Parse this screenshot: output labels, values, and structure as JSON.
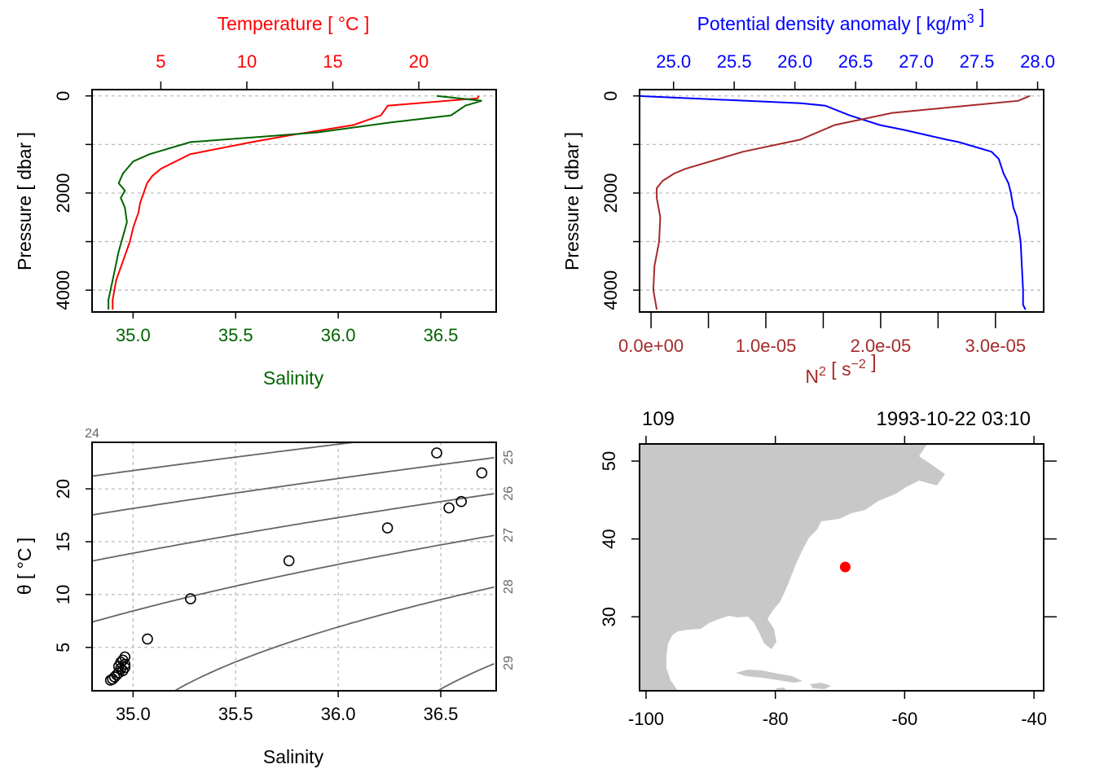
{
  "colors": {
    "temperature": "#ff0000",
    "salinity": "#006400",
    "density": "#0000ff",
    "n2": "#a52a2a",
    "land": "#c8c8c8",
    "station": "#ff0000",
    "isopycnal": "#666666",
    "grid": "#bdbdbd"
  },
  "chart_data": [
    {
      "id": "ts_profile",
      "type": "line",
      "x_bottom_label": "Salinity",
      "x_top_label": "Temperature [ °C ]",
      "y_label": "Pressure [ dbar ]",
      "x_bottom_range": [
        34.8,
        36.77
      ],
      "x_top_range": [
        1.0,
        24.5
      ],
      "y_range": [
        4450,
        -130
      ],
      "y_reversed": true,
      "grid": "dashed horizontal at y ticks",
      "x_bottom_ticks": [
        "35.0",
        "35.5",
        "36.0",
        "36.5"
      ],
      "x_top_ticks": [
        "5",
        "10",
        "15",
        "20"
      ],
      "y_ticks": [
        "0",
        "2000",
        "4000"
      ],
      "series": [
        {
          "name": "Temperature",
          "axis": "top",
          "color": "#ff0000",
          "points": [
            [
              23.5,
              0
            ],
            [
              23.4,
              50
            ],
            [
              18.2,
              200
            ],
            [
              17.8,
              400
            ],
            [
              16.2,
              600
            ],
            [
              12.7,
              800
            ],
            [
              10.3,
              950
            ],
            [
              6.7,
              1200
            ],
            [
              5.0,
              1500
            ],
            [
              4.5,
              1650
            ],
            [
              4.2,
              1800
            ],
            [
              4.0,
              2000
            ],
            [
              3.8,
              2200
            ],
            [
              3.7,
              2400
            ],
            [
              3.4,
              2700
            ],
            [
              3.2,
              3000
            ],
            [
              2.8,
              3400
            ],
            [
              2.4,
              3800
            ],
            [
              2.2,
              4200
            ],
            [
              2.2,
              4400
            ]
          ]
        },
        {
          "name": "Salinity",
          "axis": "bottom",
          "color": "#006400",
          "points": [
            [
              36.48,
              0
            ],
            [
              36.7,
              100
            ],
            [
              36.62,
              200
            ],
            [
              36.55,
              400
            ],
            [
              36.25,
              550
            ],
            [
              35.9,
              750
            ],
            [
              35.6,
              850
            ],
            [
              35.28,
              950
            ],
            [
              35.08,
              1200
            ],
            [
              35.0,
              1350
            ],
            [
              34.95,
              1600
            ],
            [
              34.93,
              1800
            ],
            [
              34.96,
              1950
            ],
            [
              34.94,
              2100
            ],
            [
              34.96,
              2300
            ],
            [
              34.97,
              2600
            ],
            [
              34.95,
              2900
            ],
            [
              34.93,
              3200
            ],
            [
              34.9,
              3800
            ],
            [
              34.88,
              4200
            ],
            [
              34.88,
              4400
            ]
          ]
        }
      ]
    },
    {
      "id": "density_n2_profile",
      "type": "line",
      "x_top_label": "Potential density anomaly [ kg/m^3 ]",
      "x_bottom_label": "N^2 [ s^-2 ]",
      "y_label": "Pressure [ dbar ]",
      "x_top_range": [
        24.72,
        28.05
      ],
      "x_bottom_range": [
        -1e-06,
        3.42e-05
      ],
      "y_range": [
        4450,
        -130
      ],
      "y_reversed": true,
      "grid": "dashed horizontal at y ticks",
      "x_top_ticks": [
        "25.0",
        "25.5",
        "26.0",
        "26.5",
        "27.0",
        "27.5",
        "28.0"
      ],
      "x_bottom_ticks": [
        "0.0e+00",
        "1.0e-05",
        "2.0e-05",
        "3.0e-05"
      ],
      "y_ticks": [
        "0",
        "2000",
        "4000"
      ],
      "series": [
        {
          "name": "Potential density anomaly",
          "axis": "top",
          "color": "#0000ff",
          "points": [
            [
              24.72,
              0
            ],
            [
              24.77,
              10
            ],
            [
              26.05,
              150
            ],
            [
              26.25,
              200
            ],
            [
              26.45,
              400
            ],
            [
              26.7,
              600
            ],
            [
              26.9,
              700
            ],
            [
              27.25,
              900
            ],
            [
              27.35,
              950
            ],
            [
              27.62,
              1150
            ],
            [
              27.68,
              1300
            ],
            [
              27.72,
              1600
            ],
            [
              27.76,
              1800
            ],
            [
              27.78,
              2000
            ],
            [
              27.8,
              2300
            ],
            [
              27.83,
              2500
            ],
            [
              27.86,
              3000
            ],
            [
              27.87,
              3500
            ],
            [
              27.88,
              4000
            ],
            [
              27.88,
              4300
            ],
            [
              27.9,
              4400
            ]
          ]
        },
        {
          "name": "N^2",
          "axis": "bottom",
          "color": "#a52a2a",
          "points": [
            [
              3.3e-05,
              0
            ],
            [
              3.2e-05,
              100
            ],
            [
              2.1e-05,
              350
            ],
            [
              1.6e-05,
              600
            ],
            [
              1.3e-05,
              900
            ],
            [
              8e-06,
              1150
            ],
            [
              3e-06,
              1500
            ],
            [
              2e-06,
              1600
            ],
            [
              1e-06,
              1750
            ],
            [
              5e-07,
              1900
            ],
            [
              5e-07,
              2100
            ],
            [
              8e-07,
              2500
            ],
            [
              7e-07,
              3000
            ],
            [
              3e-07,
              3500
            ],
            [
              2e-07,
              4000
            ],
            [
              5e-07,
              4400
            ]
          ]
        }
      ]
    },
    {
      "id": "ts_diagram",
      "type": "scatter",
      "xlabel": "Salinity",
      "ylabel": "θ [ °C ]",
      "xlim": [
        34.8,
        36.77
      ],
      "ylim": [
        0.9,
        24.4
      ],
      "grid": "dashed at ticks",
      "x_ticks": [
        "35.0",
        "35.5",
        "36.0",
        "36.5"
      ],
      "y_ticks": [
        "5",
        "10",
        "15",
        "20"
      ],
      "isopycnal_labels": [
        "24",
        "25",
        "26",
        "27",
        "28",
        "29"
      ],
      "points": [
        [
          36.48,
          23.4
        ],
        [
          36.7,
          21.5
        ],
        [
          36.6,
          18.8
        ],
        [
          36.54,
          18.2
        ],
        [
          36.24,
          16.3
        ],
        [
          35.76,
          13.2
        ],
        [
          35.28,
          9.6
        ],
        [
          35.07,
          5.8
        ],
        [
          34.96,
          4.1
        ],
        [
          34.95,
          3.8
        ],
        [
          34.94,
          3.6
        ],
        [
          34.96,
          3.4
        ],
        [
          34.93,
          3.2
        ],
        [
          34.96,
          3.1
        ],
        [
          34.94,
          3.0
        ],
        [
          34.95,
          2.8
        ],
        [
          34.93,
          2.6
        ],
        [
          34.92,
          2.4
        ],
        [
          34.91,
          2.2
        ],
        [
          34.9,
          2.0
        ],
        [
          34.89,
          1.9
        ]
      ]
    },
    {
      "id": "station_map",
      "type": "scatter",
      "xlim": [
        -101,
        -38.5
      ],
      "ylim": [
        20.5,
        52.2
      ],
      "x_ticks": [
        "-100",
        "-80",
        "-60",
        "-40"
      ],
      "y_ticks": [
        "30",
        "40",
        "50"
      ],
      "top_left_label": "109",
      "top_right_label": "1993-10-22 03:10",
      "station": {
        "lon": -69.2,
        "lat": 36.4
      }
    }
  ]
}
